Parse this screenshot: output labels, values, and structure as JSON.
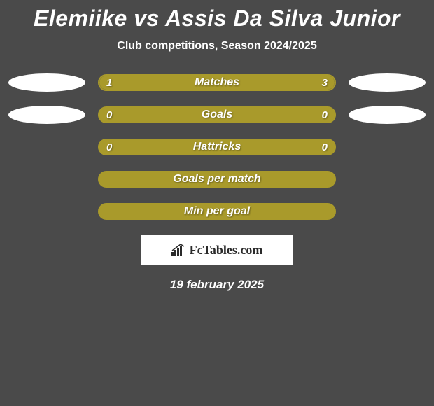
{
  "title": {
    "player1": "Elemiike",
    "vs": "vs",
    "player2": "Assis Da Silva Junior",
    "fontsize": 32,
    "color": "#ffffff"
  },
  "subtitle": {
    "text": "Club competitions, Season 2024/2025",
    "fontsize": 16,
    "color": "#ffffff"
  },
  "background_color": "#4a4a4a",
  "bar_colors": {
    "fill": "#a99a2b",
    "border": "#a99a2b",
    "empty_bg": "#4a4a4a"
  },
  "oval_color": "#ffffff",
  "rows": [
    {
      "id": "matches",
      "label": "Matches",
      "left_value": "1",
      "right_value": "3",
      "left_pct": 25,
      "right_pct": 75,
      "show_ovals": true,
      "show_values": true
    },
    {
      "id": "goals",
      "label": "Goals",
      "left_value": "0",
      "right_value": "0",
      "left_pct": 0,
      "right_pct": 0,
      "show_ovals": true,
      "show_values": true,
      "full_fill": true
    },
    {
      "id": "hattricks",
      "label": "Hattricks",
      "left_value": "0",
      "right_value": "0",
      "left_pct": 0,
      "right_pct": 0,
      "show_ovals": false,
      "show_values": true,
      "full_fill": true
    },
    {
      "id": "gpm",
      "label": "Goals per match",
      "left_value": "",
      "right_value": "",
      "left_pct": 0,
      "right_pct": 0,
      "show_ovals": false,
      "show_values": false,
      "full_fill": true
    },
    {
      "id": "mpg",
      "label": "Min per goal",
      "left_value": "",
      "right_value": "",
      "left_pct": 0,
      "right_pct": 0,
      "show_ovals": false,
      "show_values": false,
      "full_fill": true
    }
  ],
  "logo": {
    "text": "FcTables.com",
    "box_bg": "#ffffff",
    "text_color": "#2a2a2a",
    "icon_color": "#2a2a2a"
  },
  "date": {
    "text": "19 february 2025",
    "color": "#ffffff",
    "fontsize": 17
  }
}
